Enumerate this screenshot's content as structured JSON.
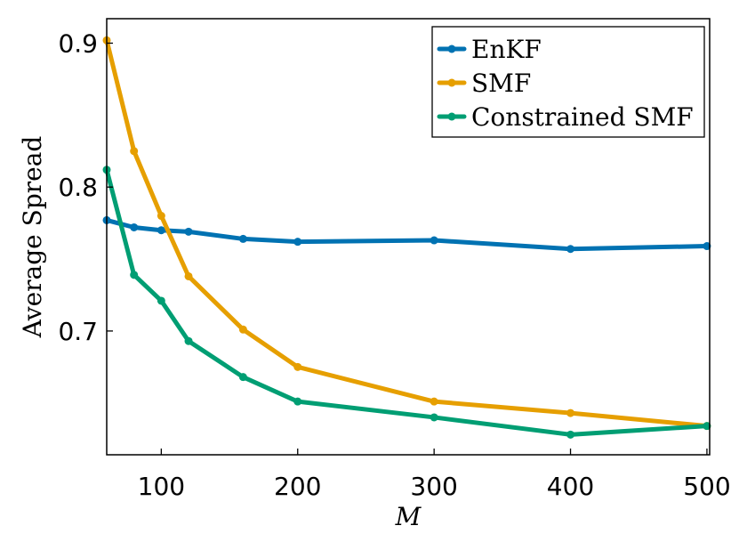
{
  "chart_data": {
    "type": "line",
    "title": "",
    "xlabel": "M",
    "ylabel": "Average Spread",
    "xlim": [
      60,
      502
    ],
    "ylim": [
      0.614,
      0.917
    ],
    "x_ticks": [
      100,
      200,
      300,
      400,
      500
    ],
    "x_tick_labels": [
      "100",
      "200",
      "300",
      "400",
      "500"
    ],
    "y_ticks": [
      0.7,
      0.8,
      0.9
    ],
    "y_tick_labels": [
      "0.7",
      "0.8",
      "0.9"
    ],
    "grid": false,
    "legend_position": "top-right",
    "series": [
      {
        "name": "EnKF",
        "color": "#0072b2",
        "x": [
          60,
          80,
          100,
          120,
          160,
          200,
          300,
          400,
          500
        ],
        "y": [
          0.777,
          0.772,
          0.77,
          0.769,
          0.764,
          0.762,
          0.763,
          0.757,
          0.759
        ]
      },
      {
        "name": "SMF",
        "color": "#e69f00",
        "x": [
          60,
          80,
          100,
          120,
          160,
          200,
          300,
          400,
          500
        ],
        "y": [
          0.902,
          0.825,
          0.78,
          0.738,
          0.701,
          0.675,
          0.651,
          0.643,
          0.634
        ]
      },
      {
        "name": "Constrained SMF",
        "color": "#009e73",
        "x": [
          60,
          80,
          100,
          120,
          160,
          200,
          300,
          400,
          500
        ],
        "y": [
          0.812,
          0.739,
          0.721,
          0.693,
          0.668,
          0.651,
          0.64,
          0.628,
          0.634
        ]
      }
    ]
  }
}
